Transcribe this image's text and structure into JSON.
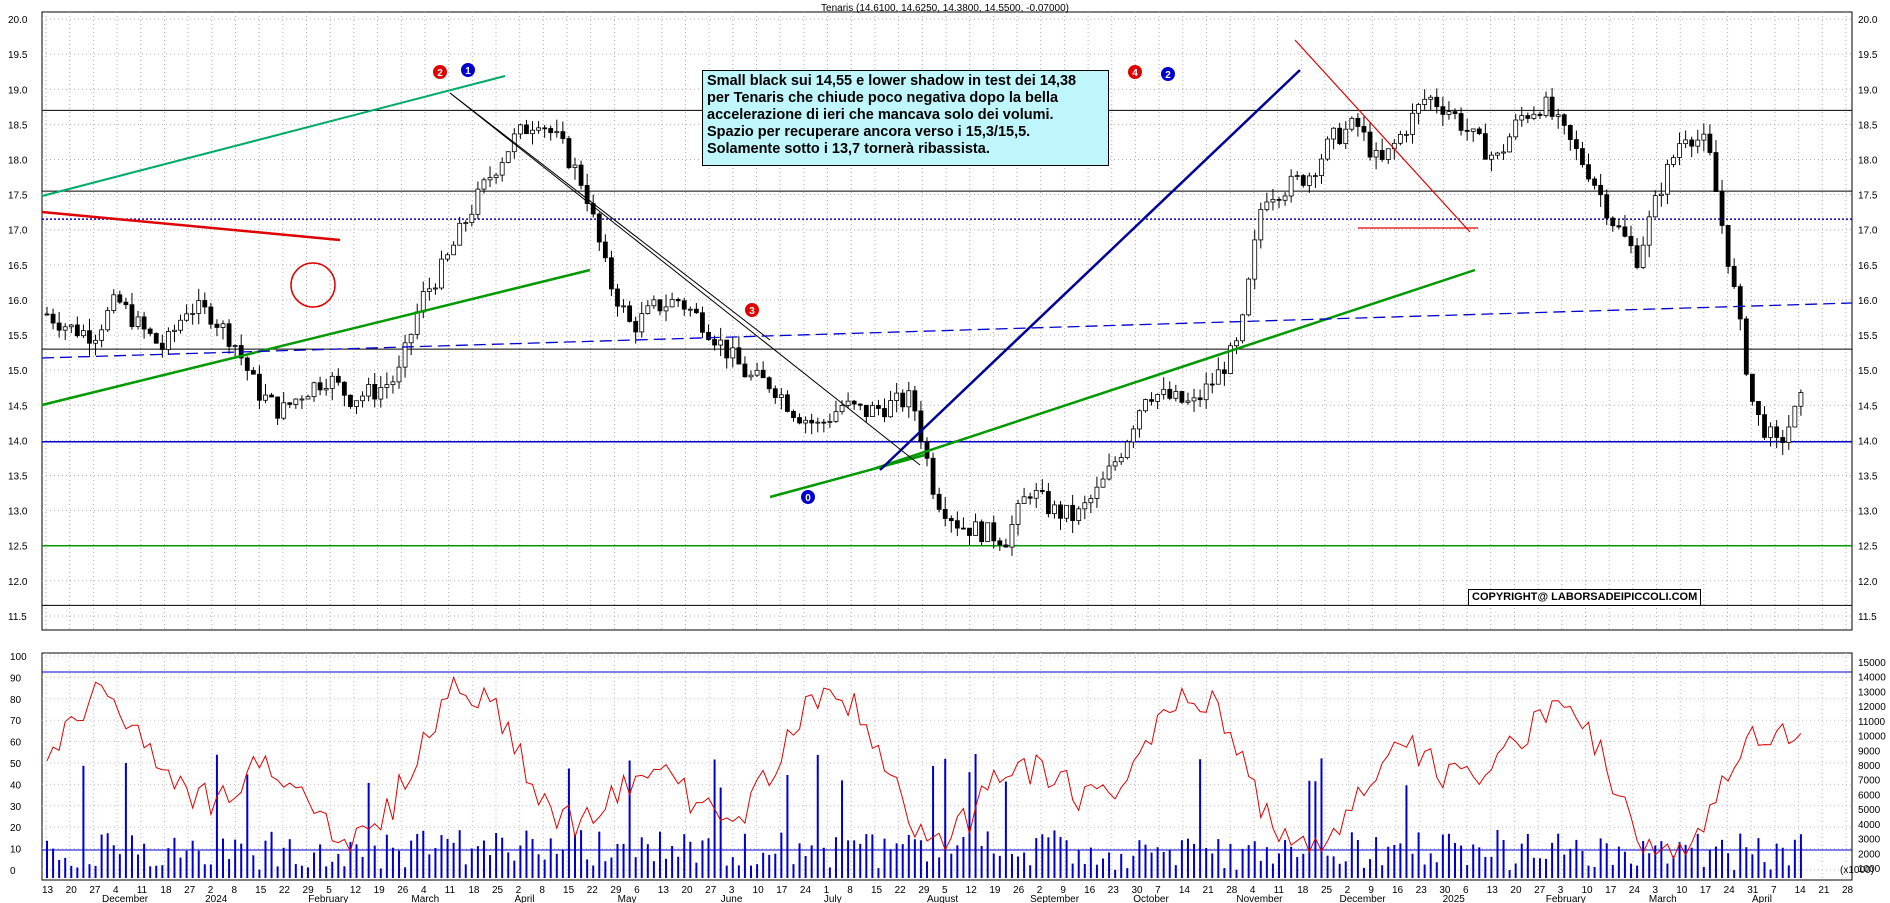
{
  "chart_data": [
    {
      "type": "candlestick",
      "title": "Tenaris (14.6100, 14.6250, 14.3800, 14.5500, -0.07000)",
      "ylim": [
        11.3,
        20.1
      ],
      "y_ticks": [
        "20.0",
        "19.5",
        "19.0",
        "18.5",
        "18.0",
        "17.5",
        "17.0",
        "16.5",
        "16.0",
        "15.5",
        "15.0",
        "14.5",
        "14.0",
        "13.5",
        "13.0",
        "12.5",
        "12.0",
        "11.5"
      ],
      "x_tick_labels": [
        "13",
        "20",
        "27",
        "4",
        "11",
        "18",
        "27",
        "2",
        "8",
        "15",
        "22",
        "29",
        "5",
        "12",
        "19",
        "26",
        "4",
        "11",
        "18",
        "25",
        "2",
        "8",
        "15",
        "22",
        "29",
        "6",
        "13",
        "20",
        "27",
        "3",
        "10",
        "17",
        "24",
        "1",
        "8",
        "15",
        "22",
        "29",
        "5",
        "12",
        "19",
        "26",
        "2",
        "9",
        "16",
        "23",
        "30",
        "7",
        "14",
        "21",
        "28",
        "4",
        "11",
        "18",
        "25",
        "2",
        "9",
        "16",
        "23",
        "30",
        "6",
        "13",
        "20",
        "27",
        "3",
        "10",
        "17",
        "24",
        "3",
        "10",
        "17",
        "24",
        "31",
        "7",
        "14",
        "21",
        "28"
      ],
      "month_labels": [
        "December",
        "2024",
        "February",
        "March",
        "April",
        "May",
        "June",
        "July",
        "August",
        "September",
        "October",
        "November",
        "December",
        "2025",
        "February",
        "March",
        "April"
      ],
      "last_close": 14.55,
      "approx_close_path": [
        {
          "date": "2023-12-13",
          "close": 15.8
        },
        {
          "date": "2023-12-20",
          "close": 15.6
        },
        {
          "date": "2023-12-27",
          "close": 15.5
        },
        {
          "date": "2024-01-04",
          "close": 16.0
        },
        {
          "date": "2024-01-11",
          "close": 15.6
        },
        {
          "date": "2024-01-18",
          "close": 15.3
        },
        {
          "date": "2024-01-27",
          "close": 15.9
        },
        {
          "date": "2024-02-02",
          "close": 15.8
        },
        {
          "date": "2024-02-08",
          "close": 15.4
        },
        {
          "date": "2024-02-15",
          "close": 14.7
        },
        {
          "date": "2024-02-22",
          "close": 14.4
        },
        {
          "date": "2024-02-29",
          "close": 14.7
        },
        {
          "date": "2024-03-05",
          "close": 14.9
        },
        {
          "date": "2024-03-12",
          "close": 14.6
        },
        {
          "date": "2024-03-19",
          "close": 14.7
        },
        {
          "date": "2024-03-26",
          "close": 14.9
        },
        {
          "date": "2024-04-01",
          "close": 16.0
        },
        {
          "date": "2024-04-08",
          "close": 16.5
        },
        {
          "date": "2024-04-15",
          "close": 17.2
        },
        {
          "date": "2024-04-22",
          "close": 17.8
        },
        {
          "date": "2024-04-29",
          "close": 18.3
        },
        {
          "date": "2024-05-06",
          "close": 18.6
        },
        {
          "date": "2024-05-13",
          "close": 18.2
        },
        {
          "date": "2024-05-20",
          "close": 17.6
        },
        {
          "date": "2024-05-27",
          "close": 16.3
        },
        {
          "date": "2024-06-03",
          "close": 15.6
        },
        {
          "date": "2024-06-10",
          "close": 15.9
        },
        {
          "date": "2024-06-17",
          "close": 16.0
        },
        {
          "date": "2024-06-24",
          "close": 15.7
        },
        {
          "date": "2024-07-01",
          "close": 15.3
        },
        {
          "date": "2024-07-08",
          "close": 14.9
        },
        {
          "date": "2024-07-15",
          "close": 14.8
        },
        {
          "date": "2024-07-22",
          "close": 14.4
        },
        {
          "date": "2024-07-29",
          "close": 14.2
        },
        {
          "date": "2024-08-05",
          "close": 14.5
        },
        {
          "date": "2024-08-12",
          "close": 14.4
        },
        {
          "date": "2024-08-19",
          "close": 14.5
        },
        {
          "date": "2024-08-26",
          "close": 14.6
        },
        {
          "date": "2024-09-02",
          "close": 13.2
        },
        {
          "date": "2024-09-09",
          "close": 12.8
        },
        {
          "date": "2024-09-16",
          "close": 12.7
        },
        {
          "date": "2024-09-23",
          "close": 12.6
        },
        {
          "date": "2024-09-30",
          "close": 13.3
        },
        {
          "date": "2024-10-07",
          "close": 13.0
        },
        {
          "date": "2024-10-14",
          "close": 12.9
        },
        {
          "date": "2024-10-21",
          "close": 13.3
        },
        {
          "date": "2024-10-28",
          "close": 13.9
        },
        {
          "date": "2024-11-04",
          "close": 14.7
        },
        {
          "date": "2024-11-11",
          "close": 14.6
        },
        {
          "date": "2024-11-18",
          "close": 14.5
        },
        {
          "date": "2024-11-25",
          "close": 14.9
        },
        {
          "date": "2024-12-02",
          "close": 15.4
        },
        {
          "date": "2024-12-09",
          "close": 17.5
        },
        {
          "date": "2024-12-16",
          "close": 17.6
        },
        {
          "date": "2024-12-23",
          "close": 17.8
        },
        {
          "date": "2024-12-30",
          "close": 18.3
        },
        {
          "date": "2025-01-06",
          "close": 18.5
        },
        {
          "date": "2025-01-13",
          "close": 17.9
        },
        {
          "date": "2025-01-20",
          "close": 18.4
        },
        {
          "date": "2025-01-27",
          "close": 18.9
        },
        {
          "date": "2025-02-03",
          "close": 18.7
        },
        {
          "date": "2025-02-10",
          "close": 18.3
        },
        {
          "date": "2025-02-17",
          "close": 18.0
        },
        {
          "date": "2025-02-24",
          "close": 18.6
        },
        {
          "date": "2025-03-03",
          "close": 18.8
        },
        {
          "date": "2025-03-10",
          "close": 18.3
        },
        {
          "date": "2025-03-17",
          "close": 17.8
        },
        {
          "date": "2025-03-24",
          "close": 17.1
        },
        {
          "date": "2025-03-31",
          "close": 16.6
        },
        {
          "date": "2025-04-07",
          "close": 17.6
        },
        {
          "date": "2025-04-14",
          "close": 18.4
        },
        {
          "date": "2025-04-21",
          "close": 18.2
        },
        {
          "date": "2025-04-28",
          "close": 16.4
        },
        {
          "date": "2025-05-05",
          "close": 14.4
        },
        {
          "date": "2025-05-12",
          "close": 13.9
        },
        {
          "date": "2025-05-19",
          "close": 14.55
        }
      ],
      "horizontal_levels": [
        {
          "value": 18.7,
          "color": "#000000"
        },
        {
          "value": 17.55,
          "color": "#000000"
        },
        {
          "value": 17.15,
          "color": "#0000cc",
          "style": "dotted"
        },
        {
          "value": 15.3,
          "color": "#000000"
        },
        {
          "value": 13.98,
          "color": "#0000cc"
        },
        {
          "value": 12.5,
          "color": "#009900"
        },
        {
          "value": 11.65,
          "color": "#000000"
        }
      ],
      "wave_labels": [
        {
          "text": "2",
          "color": "#e00000"
        },
        {
          "text": "1",
          "color": "#0000cc"
        },
        {
          "text": "3",
          "color": "#e00000"
        },
        {
          "text": "0",
          "color": "#0000cc"
        },
        {
          "text": "4",
          "color": "#e00000"
        },
        {
          "text": "2",
          "color": "#0000cc"
        }
      ],
      "annotation": [
        "Small black sui 14,55 e lower shadow in test dei 14,38",
        "per Tenaris che chiude poco negativa dopo la bella",
        "accelerazione di ieri che mancava solo dei volumi.",
        "Spazio per recuperare ancora verso i 15,3/15,5.",
        "Solamente sotto i 13,7 tornerà ribassista."
      ],
      "copyright": "COPYRIGHT@ LABORSADEIPICCOLI.COM"
    },
    {
      "type": "line+bar",
      "left_ticks": [
        "100",
        "90",
        "80",
        "70",
        "60",
        "50",
        "40",
        "30",
        "20",
        "10",
        "0"
      ],
      "right_ticks": [
        "15000",
        "14000",
        "13000",
        "12000",
        "11000",
        "10000",
        "9000",
        "8000",
        "7000",
        "6000",
        "5000",
        "4000",
        "3000",
        "2000",
        "1000"
      ],
      "right_unit": "(x1000)",
      "oscillator_color": "#e00000",
      "volume_color": "#0000cc"
    }
  ]
}
